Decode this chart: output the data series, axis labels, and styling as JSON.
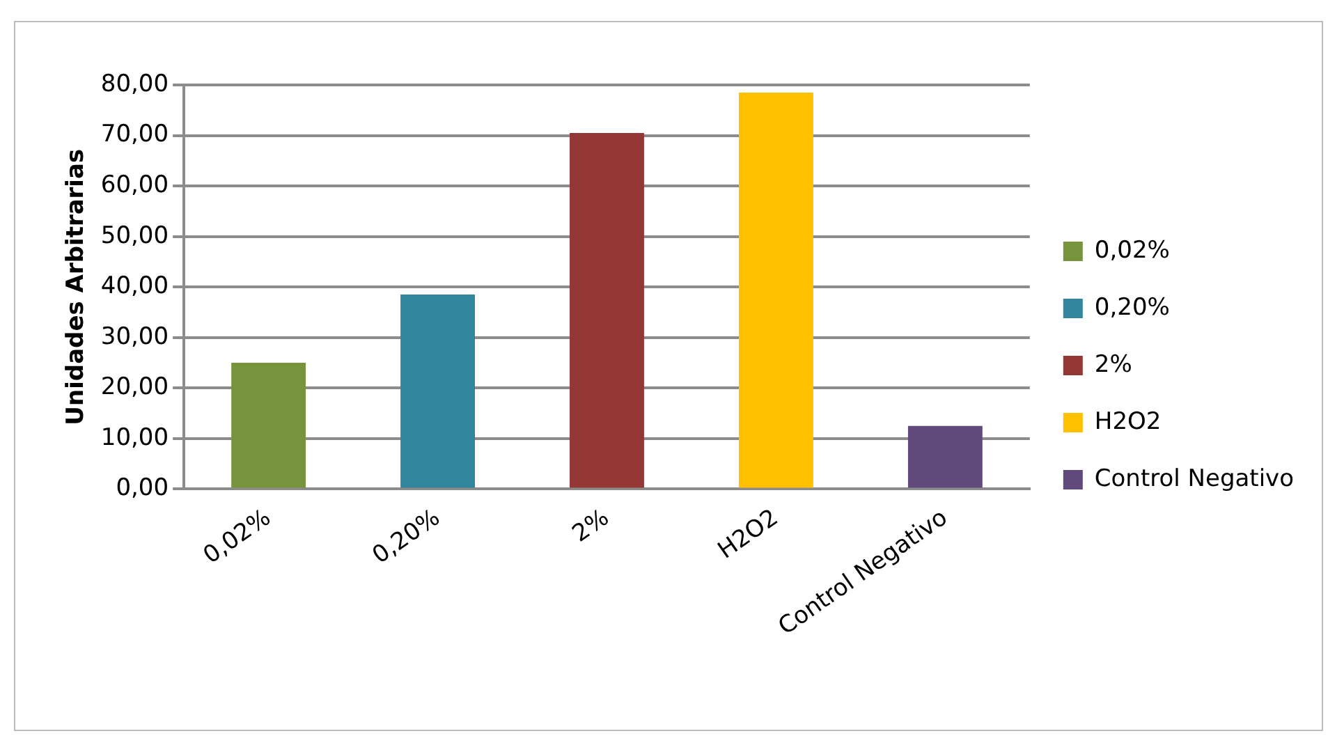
{
  "chart_data": {
    "type": "bar",
    "ylabel": "Unidades Arbitrarias",
    "categories": [
      "0,02%",
      "0,20%",
      "2%",
      "H2O2",
      "Control Negativo"
    ],
    "series": [
      {
        "name": "0,02%",
        "color": "#77933c",
        "values": [
          25,
          null,
          null,
          null,
          null
        ]
      },
      {
        "name": "0,20%",
        "color": "#31859c",
        "values": [
          null,
          38.5,
          null,
          null,
          null
        ]
      },
      {
        "name": "2%",
        "color": "#953735",
        "values": [
          null,
          null,
          70.5,
          null,
          null
        ]
      },
      {
        "name": "H2O2",
        "color": "#ffc000",
        "values": [
          null,
          null,
          null,
          78.5,
          null
        ]
      },
      {
        "name": "Control Negativo",
        "color": "#604a7b",
        "values": [
          null,
          null,
          null,
          null,
          12.5
        ]
      }
    ],
    "ylim": [
      0,
      80
    ],
    "yticks": [
      {
        "value": 0,
        "label": "0,00"
      },
      {
        "value": 10,
        "label": "10,00"
      },
      {
        "value": 20,
        "label": "20,00"
      },
      {
        "value": 30,
        "label": "30,00"
      },
      {
        "value": 40,
        "label": "40,00"
      },
      {
        "value": 50,
        "label": "50,00"
      },
      {
        "value": 60,
        "label": "60,00"
      },
      {
        "value": 70,
        "label": "70,00"
      },
      {
        "value": 80,
        "label": "80,00"
      }
    ],
    "grid": "y",
    "legend": "right"
  }
}
